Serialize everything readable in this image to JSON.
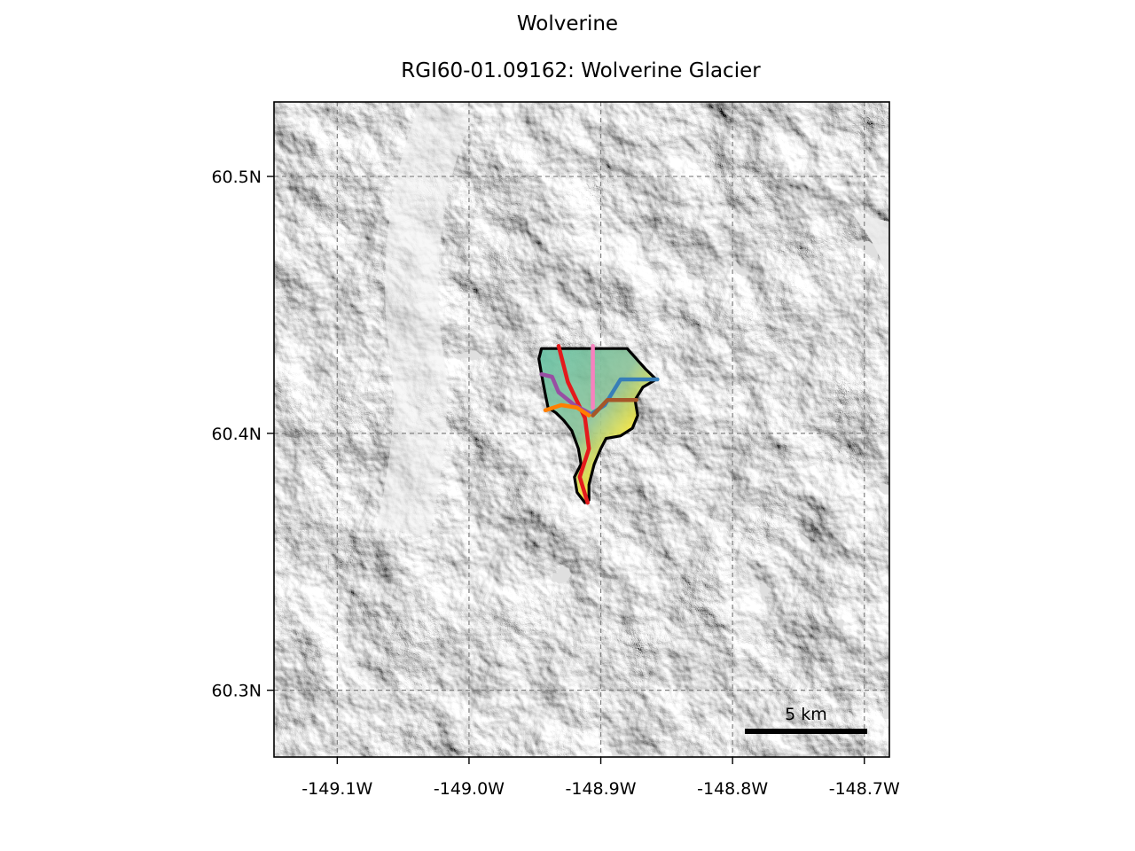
{
  "figure": {
    "suptitle": "Wolverine",
    "title": "RGI60-01.09162: Wolverine Glacier"
  },
  "map": {
    "lon_range": [
      -149.148,
      -148.681
    ],
    "lat_range": [
      60.274,
      60.529
    ],
    "lon_ticks": [
      {
        "value": -149.1,
        "label": "-149.1W"
      },
      {
        "value": -149.0,
        "label": "-149.0W"
      },
      {
        "value": -148.9,
        "label": "-148.9W"
      },
      {
        "value": -148.8,
        "label": "-148.8W"
      },
      {
        "value": -148.7,
        "label": "-148.7W"
      }
    ],
    "lat_ticks": [
      {
        "value": 60.5,
        "label": "60.5N"
      },
      {
        "value": 60.4,
        "label": "60.4N"
      },
      {
        "value": 60.3,
        "label": "60.3N"
      }
    ],
    "grid": true,
    "background": "hillshade",
    "scalebar": {
      "label": "5 km",
      "length_km": 5
    },
    "glacier": {
      "outline_color": "#000000",
      "outline": [
        [
          -148.934,
          60.433
        ],
        [
          -148.88,
          60.433
        ],
        [
          -148.866,
          60.425
        ],
        [
          -148.858,
          60.421
        ],
        [
          -148.868,
          60.418
        ],
        [
          -148.874,
          60.413
        ],
        [
          -148.872,
          60.407
        ],
        [
          -148.876,
          60.402
        ],
        [
          -148.885,
          60.399
        ],
        [
          -148.896,
          60.398
        ],
        [
          -148.9,
          60.394
        ],
        [
          -148.905,
          60.388
        ],
        [
          -148.909,
          60.38
        ],
        [
          -148.909,
          60.374
        ],
        [
          -148.912,
          60.373
        ],
        [
          -148.918,
          60.377
        ],
        [
          -148.92,
          60.383
        ],
        [
          -148.915,
          60.388
        ],
        [
          -148.917,
          60.394
        ],
        [
          -148.922,
          60.401
        ],
        [
          -148.928,
          60.405
        ],
        [
          -148.934,
          60.408
        ],
        [
          -148.94,
          60.41
        ],
        [
          -148.942,
          60.415
        ],
        [
          -148.945,
          60.423
        ],
        [
          -148.947,
          60.429
        ],
        [
          -148.945,
          60.433
        ]
      ],
      "flowlines": [
        {
          "color": "#e41a1c",
          "points": [
            [
              -148.932,
              60.434
            ],
            [
              -148.925,
              60.42
            ],
            [
              -148.912,
              60.406
            ],
            [
              -148.909,
              60.394
            ],
            [
              -148.916,
              60.383
            ],
            [
              -148.91,
              60.373
            ]
          ]
        },
        {
          "color": "#f781bf",
          "points": [
            [
              -148.906,
              60.434
            ],
            [
              -148.906,
              60.41
            ]
          ]
        },
        {
          "color": "#377eb8",
          "points": [
            [
              -148.857,
              60.421
            ],
            [
              -148.885,
              60.421
            ],
            [
              -148.897,
              60.411
            ],
            [
              -148.906,
              60.408
            ]
          ]
        },
        {
          "color": "#a65628",
          "points": [
            [
              -148.873,
              60.413
            ],
            [
              -148.895,
              60.413
            ],
            [
              -148.906,
              60.407
            ]
          ]
        },
        {
          "color": "#984ea3",
          "points": [
            [
              -148.945,
              60.423
            ],
            [
              -148.937,
              60.422
            ],
            [
              -148.932,
              60.416
            ],
            [
              -148.92,
              60.411
            ],
            [
              -148.909,
              60.408
            ]
          ]
        },
        {
          "color": "#ff7f00",
          "points": [
            [
              -148.942,
              60.409
            ],
            [
              -148.93,
              60.411
            ],
            [
              -148.918,
              60.41
            ],
            [
              -148.909,
              60.407
            ]
          ]
        }
      ]
    }
  }
}
